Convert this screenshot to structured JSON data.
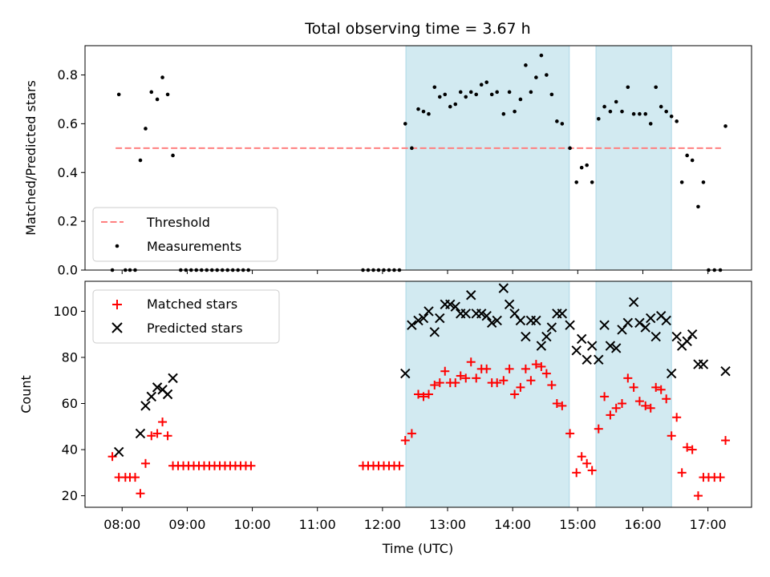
{
  "chart_data": [
    {
      "type": "scatter",
      "title": "Total observing time = 3.67 h",
      "xlabel": "",
      "ylabel": "Matched/Predicted stars",
      "xlim": [
        7.43,
        17.67
      ],
      "ylim": [
        0,
        0.92
      ],
      "yticks": [
        0.0,
        0.2,
        0.4,
        0.6,
        0.8
      ],
      "ytick_labels": [
        "0.0",
        "0.2",
        "0.4",
        "0.6",
        "0.8"
      ],
      "grid": false,
      "legend_position": "bottom-left",
      "shaded_intervals": [
        [
          12.36,
          14.87
        ],
        [
          15.28,
          16.44
        ]
      ],
      "shade_color": "#add8e6",
      "threshold": {
        "name": "Threshold",
        "y": 0.5,
        "x": [
          7.9,
          17.2
        ],
        "color": "#ff8080"
      },
      "series": [
        {
          "name": "Measurements",
          "color": "#000000",
          "points": [
            [
              7.85,
              0.0
            ],
            [
              7.95,
              0.72
            ],
            [
              8.05,
              0.0
            ],
            [
              8.12,
              0.0
            ],
            [
              8.2,
              0.0
            ],
            [
              8.28,
              0.45
            ],
            [
              8.36,
              0.58
            ],
            [
              8.45,
              0.73
            ],
            [
              8.54,
              0.7
            ],
            [
              8.62,
              0.79
            ],
            [
              8.7,
              0.72
            ],
            [
              8.78,
              0.47
            ],
            [
              8.9,
              0.0
            ],
            [
              8.98,
              0.0
            ],
            [
              9.06,
              0.0
            ],
            [
              9.14,
              0.0
            ],
            [
              9.22,
              0.0
            ],
            [
              9.3,
              0.0
            ],
            [
              9.38,
              0.0
            ],
            [
              9.46,
              0.0
            ],
            [
              9.54,
              0.0
            ],
            [
              9.62,
              0.0
            ],
            [
              9.7,
              0.0
            ],
            [
              9.78,
              0.0
            ],
            [
              9.86,
              0.0
            ],
            [
              9.94,
              0.0
            ],
            [
              11.7,
              0.0
            ],
            [
              11.78,
              0.0
            ],
            [
              11.86,
              0.0
            ],
            [
              11.94,
              0.0
            ],
            [
              12.02,
              0.0
            ],
            [
              12.1,
              0.0
            ],
            [
              12.18,
              0.0
            ],
            [
              12.26,
              0.0
            ],
            [
              12.35,
              0.6
            ],
            [
              12.45,
              0.5
            ],
            [
              12.55,
              0.66
            ],
            [
              12.63,
              0.65
            ],
            [
              12.71,
              0.64
            ],
            [
              12.8,
              0.75
            ],
            [
              12.88,
              0.71
            ],
            [
              12.96,
              0.72
            ],
            [
              13.04,
              0.67
            ],
            [
              13.12,
              0.68
            ],
            [
              13.2,
              0.73
            ],
            [
              13.28,
              0.71
            ],
            [
              13.36,
              0.73
            ],
            [
              13.44,
              0.72
            ],
            [
              13.52,
              0.76
            ],
            [
              13.6,
              0.77
            ],
            [
              13.68,
              0.72
            ],
            [
              13.76,
              0.73
            ],
            [
              13.86,
              0.64
            ],
            [
              13.95,
              0.73
            ],
            [
              14.03,
              0.65
            ],
            [
              14.12,
              0.7
            ],
            [
              14.2,
              0.84
            ],
            [
              14.28,
              0.73
            ],
            [
              14.36,
              0.79
            ],
            [
              14.44,
              0.88
            ],
            [
              14.52,
              0.8
            ],
            [
              14.6,
              0.72
            ],
            [
              14.68,
              0.61
            ],
            [
              14.76,
              0.6
            ],
            [
              14.88,
              0.5
            ],
            [
              14.98,
              0.36
            ],
            [
              15.06,
              0.42
            ],
            [
              15.14,
              0.43
            ],
            [
              15.22,
              0.36
            ],
            [
              15.32,
              0.62
            ],
            [
              15.41,
              0.67
            ],
            [
              15.5,
              0.65
            ],
            [
              15.59,
              0.69
            ],
            [
              15.68,
              0.65
            ],
            [
              15.77,
              0.75
            ],
            [
              15.86,
              0.64
            ],
            [
              15.95,
              0.64
            ],
            [
              16.04,
              0.64
            ],
            [
              16.12,
              0.6
            ],
            [
              16.2,
              0.75
            ],
            [
              16.28,
              0.67
            ],
            [
              16.36,
              0.65
            ],
            [
              16.44,
              0.63
            ],
            [
              16.52,
              0.61
            ],
            [
              16.6,
              0.36
            ],
            [
              16.68,
              0.47
            ],
            [
              16.76,
              0.45
            ],
            [
              16.85,
              0.26
            ],
            [
              16.93,
              0.36
            ],
            [
              17.01,
              0.0
            ],
            [
              17.1,
              0.0
            ],
            [
              17.19,
              0.0
            ],
            [
              17.27,
              0.59
            ]
          ]
        }
      ]
    },
    {
      "type": "scatter",
      "title": "",
      "xlabel": "Time (UTC)",
      "ylabel": "Count",
      "xlim": [
        7.43,
        17.67
      ],
      "ylim": [
        15,
        113
      ],
      "xticks": [
        8,
        9,
        10,
        11,
        12,
        13,
        14,
        15,
        16,
        17
      ],
      "xtick_labels": [
        "08:00",
        "09:00",
        "10:00",
        "11:00",
        "12:00",
        "13:00",
        "14:00",
        "15:00",
        "16:00",
        "17:00"
      ],
      "yticks": [
        20,
        40,
        60,
        80,
        100
      ],
      "ytick_labels": [
        "20",
        "40",
        "60",
        "80",
        "100"
      ],
      "grid": false,
      "legend_position": "top-left",
      "shaded_intervals": [
        [
          12.36,
          14.87
        ],
        [
          15.28,
          16.44
        ]
      ],
      "shade_color": "#add8e6",
      "series": [
        {
          "name": "Matched stars",
          "color": "#ff0000",
          "marker": "plus",
          "points": [
            [
              7.85,
              37
            ],
            [
              7.95,
              28
            ],
            [
              8.05,
              28
            ],
            [
              8.12,
              28
            ],
            [
              8.2,
              28
            ],
            [
              8.28,
              21
            ],
            [
              8.36,
              34
            ],
            [
              8.45,
              46
            ],
            [
              8.54,
              47
            ],
            [
              8.62,
              52
            ],
            [
              8.7,
              46
            ],
            [
              8.78,
              33
            ],
            [
              8.86,
              33
            ],
            [
              8.94,
              33
            ],
            [
              9.02,
              33
            ],
            [
              9.1,
              33
            ],
            [
              9.18,
              33
            ],
            [
              9.26,
              33
            ],
            [
              9.34,
              33
            ],
            [
              9.42,
              33
            ],
            [
              9.5,
              33
            ],
            [
              9.58,
              33
            ],
            [
              9.66,
              33
            ],
            [
              9.74,
              33
            ],
            [
              9.82,
              33
            ],
            [
              9.9,
              33
            ],
            [
              9.98,
              33
            ],
            [
              11.7,
              33
            ],
            [
              11.78,
              33
            ],
            [
              11.86,
              33
            ],
            [
              11.94,
              33
            ],
            [
              12.02,
              33
            ],
            [
              12.1,
              33
            ],
            [
              12.18,
              33
            ],
            [
              12.26,
              33
            ],
            [
              12.35,
              44
            ],
            [
              12.45,
              47
            ],
            [
              12.55,
              64
            ],
            [
              12.63,
              63
            ],
            [
              12.71,
              64
            ],
            [
              12.8,
              68
            ],
            [
              12.88,
              69
            ],
            [
              12.96,
              74
            ],
            [
              13.04,
              69
            ],
            [
              13.12,
              69
            ],
            [
              13.2,
              72
            ],
            [
              13.28,
              71
            ],
            [
              13.36,
              78
            ],
            [
              13.44,
              71
            ],
            [
              13.52,
              75
            ],
            [
              13.6,
              75
            ],
            [
              13.68,
              69
            ],
            [
              13.76,
              69
            ],
            [
              13.86,
              70
            ],
            [
              13.95,
              75
            ],
            [
              14.03,
              64
            ],
            [
              14.12,
              67
            ],
            [
              14.2,
              75
            ],
            [
              14.28,
              70
            ],
            [
              14.36,
              77
            ],
            [
              14.44,
              76
            ],
            [
              14.52,
              73
            ],
            [
              14.6,
              68
            ],
            [
              14.68,
              60
            ],
            [
              14.76,
              59
            ],
            [
              14.88,
              47
            ],
            [
              14.98,
              30
            ],
            [
              15.06,
              37
            ],
            [
              15.14,
              34
            ],
            [
              15.22,
              31
            ],
            [
              15.32,
              49
            ],
            [
              15.41,
              63
            ],
            [
              15.5,
              55
            ],
            [
              15.59,
              58
            ],
            [
              15.68,
              60
            ],
            [
              15.77,
              71
            ],
            [
              15.86,
              67
            ],
            [
              15.95,
              61
            ],
            [
              16.04,
              59
            ],
            [
              16.12,
              58
            ],
            [
              16.2,
              67
            ],
            [
              16.28,
              66
            ],
            [
              16.36,
              62
            ],
            [
              16.44,
              46
            ],
            [
              16.52,
              54
            ],
            [
              16.6,
              30
            ],
            [
              16.68,
              41
            ],
            [
              16.76,
              40
            ],
            [
              16.85,
              20
            ],
            [
              16.93,
              28
            ],
            [
              17.01,
              28
            ],
            [
              17.1,
              28
            ],
            [
              17.19,
              28
            ],
            [
              17.27,
              44
            ]
          ]
        },
        {
          "name": "Predicted stars",
          "color": "#000000",
          "marker": "x",
          "points": [
            [
              7.95,
              39
            ],
            [
              8.28,
              47
            ],
            [
              8.36,
              59
            ],
            [
              8.45,
              63
            ],
            [
              8.54,
              67
            ],
            [
              8.62,
              66
            ],
            [
              8.7,
              64
            ],
            [
              8.78,
              71
            ],
            [
              12.35,
              73
            ],
            [
              12.45,
              94
            ],
            [
              12.55,
              96
            ],
            [
              12.63,
              97
            ],
            [
              12.71,
              100
            ],
            [
              12.8,
              91
            ],
            [
              12.88,
              97
            ],
            [
              12.96,
              103
            ],
            [
              13.04,
              103
            ],
            [
              13.12,
              102
            ],
            [
              13.2,
              99
            ],
            [
              13.28,
              99
            ],
            [
              13.36,
              107
            ],
            [
              13.44,
              99
            ],
            [
              13.52,
              99
            ],
            [
              13.6,
              98
            ],
            [
              13.68,
              95
            ],
            [
              13.76,
              96
            ],
            [
              13.86,
              110
            ],
            [
              13.95,
              103
            ],
            [
              14.03,
              99
            ],
            [
              14.12,
              96
            ],
            [
              14.2,
              89
            ],
            [
              14.28,
              96
            ],
            [
              14.36,
              96
            ],
            [
              14.44,
              85
            ],
            [
              14.52,
              89
            ],
            [
              14.6,
              93
            ],
            [
              14.68,
              99
            ],
            [
              14.76,
              99
            ],
            [
              14.88,
              94
            ],
            [
              14.98,
              83
            ],
            [
              15.06,
              88
            ],
            [
              15.14,
              79
            ],
            [
              15.22,
              85
            ],
            [
              15.32,
              79
            ],
            [
              15.41,
              94
            ],
            [
              15.5,
              85
            ],
            [
              15.59,
              84
            ],
            [
              15.68,
              92
            ],
            [
              15.77,
              95
            ],
            [
              15.86,
              104
            ],
            [
              15.95,
              95
            ],
            [
              16.04,
              93
            ],
            [
              16.12,
              97
            ],
            [
              16.2,
              89
            ],
            [
              16.28,
              98
            ],
            [
              16.36,
              96
            ],
            [
              16.44,
              73
            ],
            [
              16.52,
              89
            ],
            [
              16.6,
              85
            ],
            [
              16.68,
              87
            ],
            [
              16.76,
              90
            ],
            [
              16.85,
              77
            ],
            [
              16.93,
              77
            ],
            [
              17.27,
              74
            ]
          ]
        }
      ]
    }
  ]
}
